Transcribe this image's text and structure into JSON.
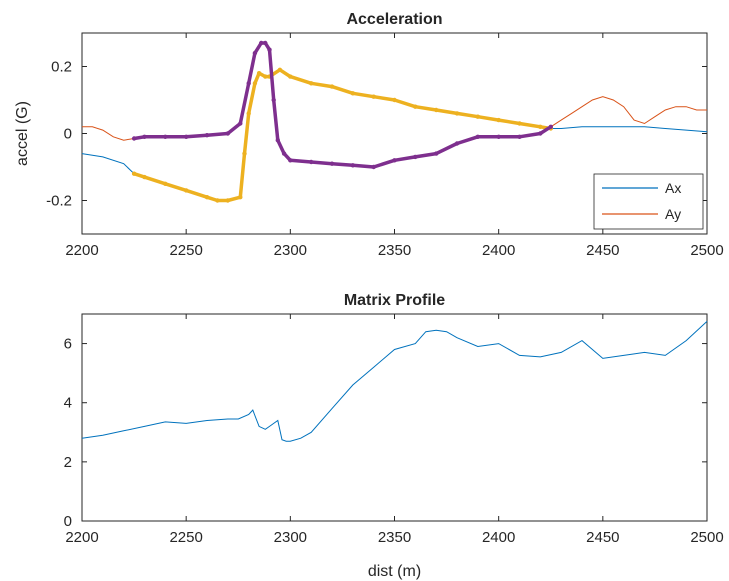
{
  "chart_data": [
    {
      "type": "line",
      "title": "Acceleration",
      "xlabel": "",
      "ylabel": "accel (G)",
      "xlim": [
        2200,
        2500
      ],
      "ylim": [
        -0.3,
        0.3
      ],
      "xticks": [
        "2200",
        "2250",
        "2300",
        "2350",
        "2400",
        "2450",
        "2500"
      ],
      "yticks": [
        "-0.2",
        "0",
        "0.2"
      ],
      "ytick_values": [
        -0.2,
        0,
        0.2
      ],
      "legend": {
        "position": "bottom-right",
        "entries": [
          "Ax",
          "Ay"
        ]
      },
      "grid": false,
      "series": [
        {
          "name": "Ax",
          "color": "#0072BD",
          "x": [
            2200,
            2210,
            2220,
            2225,
            2230,
            2240,
            2250,
            2260,
            2265,
            2270,
            2276,
            2278,
            2280,
            2283,
            2285,
            2288,
            2290,
            2295,
            2300,
            2310,
            2320,
            2330,
            2340,
            2350,
            2360,
            2370,
            2380,
            2390,
            2400,
            2410,
            2420,
            2425,
            2430,
            2440,
            2450,
            2460,
            2470,
            2480,
            2490,
            2500
          ],
          "y": [
            -0.06,
            -0.07,
            -0.09,
            -0.12,
            -0.13,
            -0.15,
            -0.17,
            -0.19,
            -0.2,
            -0.2,
            -0.19,
            -0.06,
            0.06,
            0.15,
            0.18,
            0.17,
            0.17,
            0.19,
            0.17,
            0.15,
            0.14,
            0.12,
            0.11,
            0.1,
            0.08,
            0.07,
            0.06,
            0.05,
            0.04,
            0.03,
            0.02,
            0.015,
            0.015,
            0.02,
            0.02,
            0.02,
            0.02,
            0.015,
            0.01,
            0.005
          ]
        },
        {
          "name": "Ay",
          "color": "#D95319",
          "x": [
            2200,
            2205,
            2210,
            2215,
            2220,
            2225,
            2230,
            2240,
            2250,
            2260,
            2270,
            2276,
            2280,
            2283,
            2286,
            2288,
            2290,
            2292,
            2294,
            2297,
            2300,
            2310,
            2320,
            2330,
            2340,
            2350,
            2360,
            2370,
            2380,
            2390,
            2400,
            2410,
            2420,
            2425,
            2430,
            2435,
            2440,
            2445,
            2450,
            2455,
            2460,
            2465,
            2470,
            2475,
            2480,
            2485,
            2490,
            2495,
            2500
          ],
          "y": [
            0.02,
            0.02,
            0.01,
            -0.01,
            -0.02,
            -0.015,
            -0.01,
            -0.01,
            -0.01,
            -0.005,
            0.0,
            0.03,
            0.15,
            0.24,
            0.27,
            0.27,
            0.25,
            0.1,
            -0.02,
            -0.06,
            -0.08,
            -0.085,
            -0.09,
            -0.095,
            -0.1,
            -0.08,
            -0.07,
            -0.06,
            -0.03,
            -0.01,
            -0.01,
            -0.01,
            0.0,
            0.02,
            0.04,
            0.06,
            0.08,
            0.1,
            0.11,
            0.1,
            0.08,
            0.04,
            0.03,
            0.05,
            0.07,
            0.08,
            0.08,
            0.07,
            0.07
          ]
        }
      ],
      "highlights": [
        {
          "color": "#EDB120",
          "x": [
            2225,
            2230,
            2240,
            2250,
            2260,
            2265,
            2270,
            2276,
            2278,
            2280,
            2283,
            2285,
            2288,
            2290,
            2295,
            2300,
            2310,
            2320,
            2330,
            2340,
            2350,
            2360,
            2370,
            2380,
            2390,
            2400,
            2410,
            2420,
            2425
          ],
          "y": [
            -0.12,
            -0.13,
            -0.15,
            -0.17,
            -0.19,
            -0.2,
            -0.2,
            -0.19,
            -0.06,
            0.06,
            0.15,
            0.18,
            0.17,
            0.17,
            0.19,
            0.17,
            0.15,
            0.14,
            0.12,
            0.11,
            0.1,
            0.08,
            0.07,
            0.06,
            0.05,
            0.04,
            0.03,
            0.02,
            0.015
          ]
        },
        {
          "color": "#7E2F8E",
          "x": [
            2225,
            2230,
            2240,
            2250,
            2260,
            2270,
            2276,
            2280,
            2283,
            2286,
            2288,
            2290,
            2292,
            2294,
            2297,
            2300,
            2310,
            2320,
            2330,
            2340,
            2350,
            2360,
            2370,
            2380,
            2390,
            2400,
            2410,
            2420,
            2425
          ],
          "y": [
            -0.015,
            -0.01,
            -0.01,
            -0.01,
            -0.005,
            0.0,
            0.03,
            0.15,
            0.24,
            0.27,
            0.27,
            0.25,
            0.1,
            -0.02,
            -0.06,
            -0.08,
            -0.085,
            -0.09,
            -0.095,
            -0.1,
            -0.08,
            -0.07,
            -0.06,
            -0.03,
            -0.01,
            -0.01,
            -0.01,
            0.0,
            0.02
          ]
        }
      ]
    },
    {
      "type": "line",
      "title": "Matrix Profile",
      "xlabel": "dist (m)",
      "ylabel": "",
      "xlim": [
        2200,
        2500
      ],
      "ylim": [
        0,
        7
      ],
      "xticks": [
        "2200",
        "2250",
        "2300",
        "2350",
        "2400",
        "2450",
        "2500"
      ],
      "yticks": [
        "0",
        "2",
        "4",
        "6"
      ],
      "ytick_values": [
        0,
        2,
        4,
        6
      ],
      "grid": false,
      "series": [
        {
          "color": "#0072BD",
          "x": [
            2200,
            2210,
            2220,
            2230,
            2240,
            2250,
            2260,
            2270,
            2275,
            2280,
            2282,
            2285,
            2288,
            2290,
            2292,
            2294,
            2296,
            2298,
            2300,
            2305,
            2310,
            2320,
            2330,
            2340,
            2350,
            2360,
            2365,
            2370,
            2375,
            2380,
            2390,
            2400,
            2410,
            2420,
            2430,
            2440,
            2450,
            2460,
            2470,
            2480,
            2490,
            2500
          ],
          "y": [
            2.8,
            2.9,
            3.05,
            3.2,
            3.35,
            3.3,
            3.4,
            3.45,
            3.45,
            3.6,
            3.75,
            3.2,
            3.1,
            3.2,
            3.3,
            3.4,
            2.75,
            2.7,
            2.7,
            2.8,
            3.0,
            3.8,
            4.6,
            5.2,
            5.8,
            6.0,
            6.4,
            6.45,
            6.4,
            6.2,
            5.9,
            6.0,
            5.6,
            5.55,
            5.7,
            6.1,
            5.5,
            5.6,
            5.7,
            5.6,
            6.1,
            6.75
          ]
        }
      ]
    }
  ]
}
